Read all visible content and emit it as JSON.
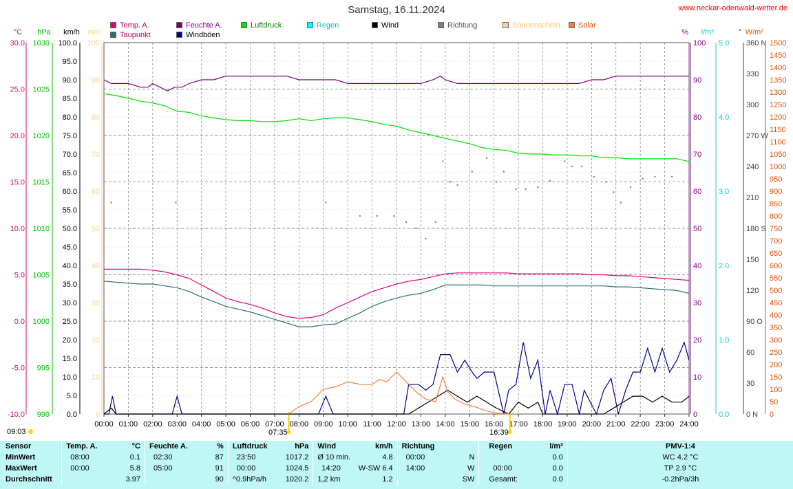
{
  "header": {
    "title": "Samstag, 16.11.2024",
    "site": "www.neckar-odenwald-wetter.de"
  },
  "legend": [
    {
      "label": "Temp. A.",
      "color": "#e0007a",
      "text_color": "#c00060"
    },
    {
      "label": "Taupunkt",
      "color": "#2f6f6f",
      "text_color": "#c00060"
    },
    {
      "label": "Feuchte A.",
      "color": "#7a007a",
      "text_color": "#7a007a"
    },
    {
      "label": "Windböen",
      "color": "#00008b",
      "text_color": "#000000"
    },
    {
      "label": "Luftdruck",
      "color": "#00e000",
      "text_color": "#008000"
    },
    {
      "label": "Regen",
      "color": "#00ffff",
      "text_color": "#00c0c0"
    },
    {
      "label": "Wind",
      "color": "#000000",
      "text_color": "#000000"
    },
    {
      "label": "Richtung",
      "color": "#808080",
      "text_color": "#505050"
    },
    {
      "label": "Sonnenschein",
      "color": "#ffd090",
      "text_color": "#ffc070"
    },
    {
      "label": "Solar",
      "color": "#ff7a3a",
      "text_color": "#e05000"
    }
  ],
  "chart_data": {
    "type": "line",
    "x_unit": "time",
    "x_ticks": [
      "00:00",
      "01:00",
      "02:00",
      "03:00",
      "04:00",
      "05:00",
      "06:00",
      "07:00",
      "08:00",
      "09:00",
      "10:00",
      "11:00",
      "12:00",
      "13:00",
      "14:00",
      "15:00",
      "16:00",
      "17:00",
      "18:00",
      "19:00",
      "20:00",
      "21:00",
      "22:00",
      "23:00",
      "24:00"
    ],
    "sunrise": "07:35",
    "sunset": "16:39",
    "axes": {
      "temp": {
        "unit": "°C",
        "color": "#e0007a",
        "ticks": [
          "30.0",
          "25.0",
          "20.0",
          "15.0",
          "10.0",
          "5.0",
          "0.0",
          "-5.0",
          "-10.0"
        ]
      },
      "pressure": {
        "unit": "hPa",
        "color": "#00c000",
        "ticks": [
          "1030",
          "1025",
          "1020",
          "1015",
          "1010",
          "1005",
          "1000",
          "995",
          "990"
        ]
      },
      "wind": {
        "unit": "km/h",
        "color": "#000000",
        "ticks": [
          "100.0",
          "95.0",
          "90.0",
          "85.0",
          "80.0",
          "75.0",
          "70.0",
          "65.0",
          "60.0",
          "55.0",
          "50.0",
          "45.0",
          "40.0",
          "35.0",
          "30.0",
          "25.0",
          "20.0",
          "15.0",
          "10.0",
          "5.0",
          "0.0"
        ]
      },
      "sunshine": {
        "unit": "min",
        "color": "#ffd090",
        "ticks": [
          "100",
          "90",
          "80",
          "70",
          "60",
          "50",
          "40",
          "30",
          "20",
          "10",
          "0"
        ]
      },
      "humidity": {
        "unit": "%",
        "color": "#800080",
        "ticks": [
          "100",
          "90",
          "80",
          "70",
          "60",
          "50",
          "40",
          "30",
          "20",
          "10",
          "0"
        ]
      },
      "rain": {
        "unit": "l/m²",
        "color": "#00d0d0",
        "ticks": [
          "5.0",
          "4.0",
          "3.0",
          "2.0",
          "1.0",
          "0.0"
        ]
      },
      "direction": {
        "unit": "°",
        "color": "#404040",
        "ticks": [
          "360 N",
          "330",
          "300",
          "270 W",
          "240",
          "210",
          "180 S",
          "150",
          "120",
          "90 O",
          "60",
          "30",
          "0 N"
        ]
      },
      "solar": {
        "unit": "W/m²",
        "color": "#e05000",
        "ticks": [
          "1500",
          "1450",
          "1400",
          "1350",
          "1300",
          "1250",
          "1200",
          "1150",
          "1100",
          "1050",
          "1000",
          "950",
          "900",
          "850",
          "800",
          "750",
          "700",
          "650",
          "600",
          "550",
          "500",
          "450",
          "400",
          "350",
          "300",
          "250",
          "200",
          "150",
          "100",
          "50",
          "0"
        ]
      }
    },
    "series": [
      {
        "name": "Temp. A.",
        "axis": "temp",
        "color": "#e0007a",
        "x": [
          0,
          0.5,
          1,
          1.5,
          2,
          2.5,
          3,
          3.5,
          4,
          4.5,
          5,
          5.5,
          6,
          6.5,
          7,
          7.5,
          8,
          8.5,
          9,
          9.5,
          10,
          10.5,
          11,
          11.5,
          12,
          12.5,
          13,
          13.5,
          14,
          14.5,
          15,
          15.5,
          16,
          16.5,
          17,
          17.5,
          18,
          18.5,
          19,
          19.5,
          20,
          20.5,
          21,
          21.5,
          22,
          22.5,
          23,
          23.5,
          24
        ],
        "y": [
          5.6,
          5.6,
          5.6,
          5.6,
          5.5,
          5.3,
          5.0,
          4.6,
          3.9,
          3.2,
          2.5,
          2.1,
          1.8,
          1.4,
          0.9,
          0.5,
          0.3,
          0.4,
          0.7,
          1.4,
          2.0,
          2.6,
          3.2,
          3.6,
          4.0,
          4.3,
          4.5,
          4.8,
          5.1,
          5.2,
          5.2,
          5.2,
          5.2,
          5.2,
          5.1,
          5.1,
          5.1,
          5.1,
          5.1,
          5.1,
          5.0,
          5.0,
          4.9,
          4.9,
          4.8,
          4.7,
          4.6,
          4.5,
          4.4
        ]
      },
      {
        "name": "Taupunkt",
        "axis": "temp",
        "color": "#2f6f6f",
        "x": [
          0,
          0.5,
          1,
          1.5,
          2,
          2.5,
          3,
          3.5,
          4,
          4.5,
          5,
          5.5,
          6,
          6.5,
          7,
          7.5,
          8,
          8.5,
          9,
          9.5,
          10,
          10.5,
          11,
          11.5,
          12,
          12.5,
          13,
          13.5,
          14,
          14.5,
          15,
          15.5,
          16,
          16.5,
          17,
          17.5,
          18,
          18.5,
          19,
          19.5,
          20,
          20.5,
          21,
          21.5,
          22,
          22.5,
          23,
          23.5,
          24
        ],
        "y": [
          4.3,
          4.2,
          4.1,
          4.0,
          4.0,
          3.8,
          3.6,
          3.2,
          2.6,
          2.1,
          1.6,
          1.3,
          1.0,
          0.6,
          0.2,
          -0.2,
          -0.6,
          -0.6,
          -0.4,
          -0.3,
          0.3,
          0.9,
          1.6,
          2.1,
          2.5,
          2.8,
          3.0,
          3.4,
          3.9,
          3.9,
          3.9,
          3.9,
          3.8,
          3.8,
          3.8,
          3.8,
          3.8,
          3.8,
          3.8,
          3.8,
          3.8,
          3.8,
          3.7,
          3.7,
          3.6,
          3.5,
          3.4,
          3.3,
          3.0
        ]
      },
      {
        "name": "Feuchte A.",
        "axis": "humidity",
        "color": "#7a007a",
        "x": [
          0,
          0.3,
          0.5,
          1,
          1.5,
          1.8,
          2,
          2.3,
          2.6,
          2.9,
          3.2,
          3.5,
          4,
          4.5,
          5,
          5.5,
          6,
          6.5,
          7,
          7.5,
          8,
          8.5,
          9,
          9.5,
          10,
          10.5,
          11,
          11.5,
          12,
          12.5,
          13,
          13.5,
          13.8,
          14,
          14.5,
          15,
          15.5,
          16,
          16.5,
          17,
          17.5,
          18,
          18.5,
          19,
          19.5,
          20,
          20.5,
          21,
          21.5,
          22,
          22.5,
          23,
          23.5,
          24
        ],
        "y": [
          90,
          89,
          89,
          89,
          88,
          88,
          89,
          88,
          87,
          88,
          88,
          89,
          90,
          90,
          91,
          91,
          91,
          91,
          91,
          91,
          90,
          90,
          90,
          90,
          89,
          89,
          89,
          89,
          89,
          89,
          89,
          90,
          91,
          90,
          89,
          89,
          89,
          89,
          89,
          89,
          89,
          89,
          89,
          89,
          89,
          90,
          90,
          91,
          91,
          91,
          91,
          91,
          91,
          91
        ]
      },
      {
        "name": "Luftdruck",
        "axis": "pressure",
        "color": "#00e000",
        "x": [
          0,
          0.5,
          1,
          1.5,
          2,
          2.5,
          3,
          3.5,
          4,
          4.5,
          5,
          5.5,
          6,
          6.5,
          7,
          7.5,
          8,
          8.5,
          9,
          9.5,
          10,
          10.5,
          11,
          11.5,
          12,
          12.5,
          13,
          13.5,
          14,
          14.5,
          15,
          15.5,
          16,
          16.5,
          17,
          17.5,
          18,
          18.5,
          19,
          19.5,
          20,
          20.5,
          21,
          21.5,
          22,
          22.5,
          23,
          23.5,
          24
        ],
        "y": [
          1024.5,
          1024.3,
          1024.0,
          1023.7,
          1023.5,
          1023.2,
          1022.6,
          1022.5,
          1022.1,
          1021.9,
          1021.7,
          1021.6,
          1021.6,
          1021.5,
          1021.5,
          1021.6,
          1021.8,
          1021.6,
          1021.8,
          1021.9,
          1021.9,
          1021.7,
          1021.5,
          1021.2,
          1021.0,
          1020.6,
          1020.3,
          1020.0,
          1019.7,
          1019.4,
          1019.1,
          1018.7,
          1018.5,
          1018.4,
          1018.1,
          1018.0,
          1018.0,
          1017.9,
          1017.9,
          1017.8,
          1017.8,
          1017.6,
          1017.6,
          1017.5,
          1017.5,
          1017.5,
          1017.5,
          1017.5,
          1017.2
        ]
      },
      {
        "name": "Windböen",
        "axis": "wind",
        "color": "#00008b",
        "x": [
          0,
          0.2,
          0.35,
          0.5,
          2.8,
          3.0,
          3.2,
          8.8,
          9.1,
          9.4,
          12.3,
          12.5,
          12.9,
          13.2,
          13.5,
          13.8,
          14.2,
          14.5,
          14.8,
          15.1,
          15.3,
          15.6,
          16.0,
          16.4,
          16.6,
          16.9,
          17.2,
          17.5,
          17.8,
          18.1,
          18.3,
          18.6,
          18.9,
          19.2,
          19.5,
          19.7,
          20.2,
          20.5,
          20.8,
          21.1,
          21.4,
          21.7,
          22.0,
          22.3,
          22.6,
          22.9,
          23.2,
          23.5,
          23.8,
          24.0
        ],
        "y": [
          0,
          0,
          4.8,
          0,
          0,
          4.8,
          0,
          0,
          4.8,
          0,
          0,
          8,
          8,
          6.4,
          8,
          16,
          16,
          11.3,
          14.5,
          11.3,
          9.6,
          11.3,
          11.3,
          0,
          6.4,
          8,
          19.3,
          9.6,
          14.5,
          0,
          6.4,
          0,
          8,
          8,
          0,
          6.4,
          0,
          6.4,
          9.6,
          0,
          6.4,
          11.3,
          11.3,
          17.7,
          11.3,
          17.7,
          11.3,
          14.5,
          19.3,
          14.5
        ]
      },
      {
        "name": "Wind",
        "axis": "wind",
        "color": "#000000",
        "x": [
          0,
          0.3,
          0.5,
          12.5,
          12.9,
          13.3,
          13.7,
          14.1,
          14.5,
          14.9,
          15.3,
          15.7,
          16.1,
          16.6,
          17.0,
          17.4,
          17.8,
          18.0,
          20.5,
          20.9,
          21.3,
          21.7,
          22.1,
          22.5,
          22.9,
          23.3,
          23.7,
          24.0
        ],
        "y": [
          0,
          1.6,
          0,
          0,
          1.6,
          3.2,
          4.8,
          6.4,
          4.8,
          3.2,
          4.8,
          3.2,
          1.6,
          0,
          3.2,
          1.6,
          3.2,
          0,
          0,
          1.6,
          3.2,
          4.8,
          4.8,
          3.2,
          4.8,
          3.2,
          3.2,
          4.8
        ]
      },
      {
        "name": "Richtung",
        "axis": "direction",
        "color": "#808080",
        "x": [
          0.3,
          2.95,
          9.1,
          10.5,
          11.2,
          11.9,
          12.4,
          12.8,
          13.2,
          13.6,
          13.9,
          14.2,
          14.5,
          15.1,
          15.7,
          16.1,
          16.4,
          16.9,
          17.3,
          17.8,
          18.3,
          18.9,
          19.2,
          19.6,
          20.1,
          20.6,
          20.9,
          21.2,
          21.6,
          22.1,
          22.6,
          23.3
        ],
        "y": [
          205,
          205,
          205,
          192,
          192,
          192,
          186,
          180,
          170,
          186,
          245,
          225,
          222,
          235,
          248,
          225,
          235,
          218,
          218,
          220,
          226,
          245,
          240,
          240,
          230,
          225,
          215,
          205,
          220,
          228,
          230,
          230
        ]
      },
      {
        "name": "Solar",
        "axis": "solar",
        "color": "#ff7a3a",
        "x": [
          7.58,
          8.0,
          8.5,
          9.0,
          9.5,
          10.0,
          10.5,
          11.0,
          11.3,
          11.6,
          12.0,
          12.4,
          12.8,
          13.2,
          13.6,
          13.9,
          14.1,
          14.4,
          14.8,
          15.2,
          15.6,
          16.0,
          16.3,
          16.65
        ],
        "y": [
          0,
          30,
          50,
          100,
          110,
          130,
          120,
          120,
          140,
          130,
          170,
          130,
          90,
          60,
          50,
          150,
          90,
          60,
          40,
          30,
          15,
          5,
          2,
          0
        ]
      }
    ]
  },
  "updated": {
    "time": "09:03"
  },
  "stats": {
    "header": [
      "Sensor",
      "Temp. A.",
      "°C",
      "Feuchte A.",
      "%",
      "Luftdruck",
      "hPa",
      "Wind",
      "km/h",
      "Richtung",
      "",
      "Regen",
      "l/m²",
      "PMV-1:4"
    ],
    "rows": [
      {
        "label": "MinWert",
        "temp_time": "08:00",
        "temp_val": "0.1",
        "hum_time": "02:30",
        "hum_val": "87",
        "press_time": "23:50",
        "press_val": "1017.2",
        "wind_time": "Ø 10 min.",
        "wind_val": "4.8",
        "dir_time": "00:00",
        "dir_val": "N",
        "rain_time": "",
        "rain_val": "0.0",
        "pmv": "WC 4.2 °C"
      },
      {
        "label": "MaxWert",
        "temp_time": "00:00",
        "temp_val": "5.8",
        "hum_time": "05:00",
        "hum_val": "91",
        "press_time": "00:00",
        "press_val": "1024.5",
        "wind_time": "14:20",
        "wind_val": "W-SW 6.4",
        "dir_time": "14:00",
        "dir_val": "W",
        "rain_time": "00:00",
        "rain_val": "0.0",
        "pmv": "TP 2.9 °C"
      },
      {
        "label": "Durchschnitt",
        "temp_time": "",
        "temp_val": "3.97",
        "hum_time": "",
        "hum_val": "90",
        "press_time": "^0.9hPa/h",
        "press_val": "1020.2",
        "wind_time": "1,2 km",
        "wind_val": "1.2",
        "dir_time": "",
        "dir_val": "SW",
        "rain_time": "Gesamt:",
        "rain_val": "0.0",
        "pmv": "-0.2hPa/3h"
      }
    ]
  }
}
